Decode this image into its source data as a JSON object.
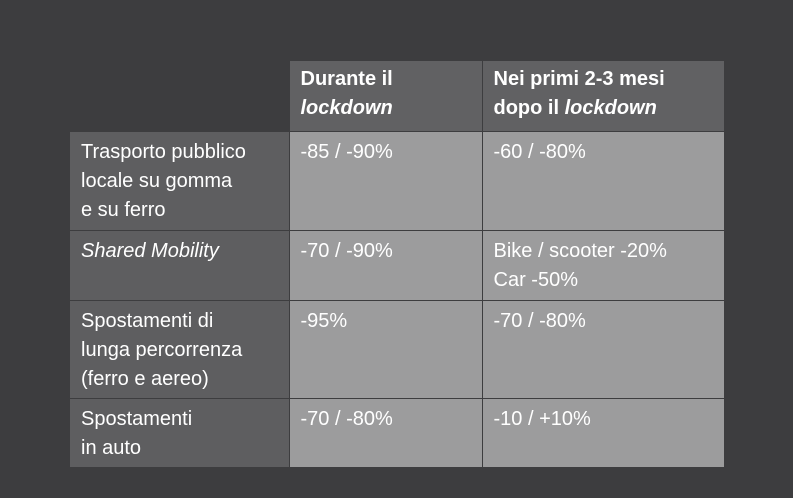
{
  "header": {
    "col1_line1": "Durante il",
    "col1_line2": "lockdown",
    "col2_line1": "Nei primi 2-3 mesi",
    "col2_prefix": "dopo il ",
    "col2_italic": "lockdown"
  },
  "rows": [
    {
      "label_lines": [
        "Trasporto pubblico",
        "locale su gomma",
        "e su ferro"
      ],
      "during": "-85 / -90%",
      "after_lines": [
        "-60 / -80%"
      ]
    },
    {
      "label_lines": [
        "Shared Mobility"
      ],
      "during": "-70 / -90%",
      "after_lines": [
        "Bike / scooter -20%",
        "Car -50%"
      ]
    },
    {
      "label_lines": [
        "Spostamenti di",
        "lunga percorrenza",
        "(ferro e aereo)"
      ],
      "during": "-95%",
      "after_lines": [
        "-70 / -80%"
      ]
    },
    {
      "label_lines": [
        "Spostamenti",
        "in auto"
      ],
      "during": "-70 / -80%",
      "after_lines": [
        "-10 / +10%"
      ]
    }
  ]
}
